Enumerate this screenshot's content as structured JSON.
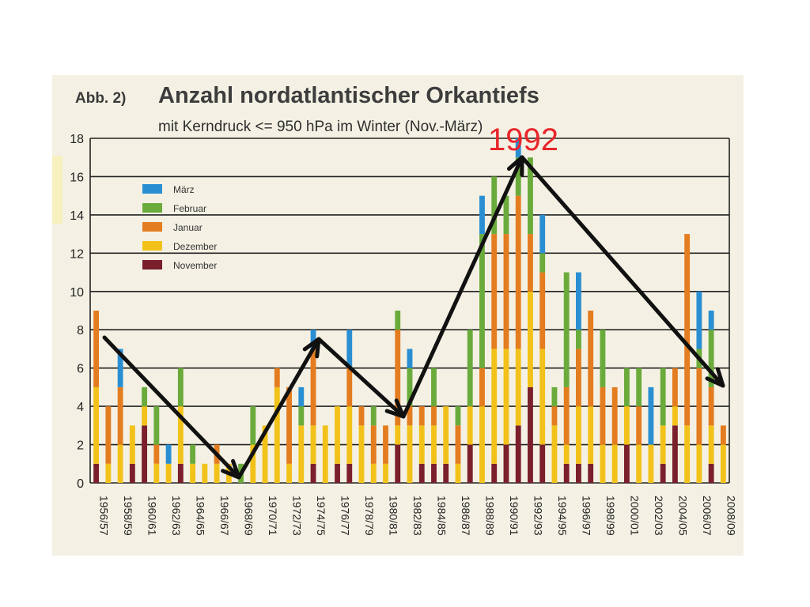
{
  "figure_label": "Abb. 2)",
  "annotation": "1992",
  "chart_data": {
    "type": "bar",
    "stacked": true,
    "title": "Anzahl nordatlantischer Orkantiefs",
    "subtitle": "mit Kerndruck <= 950 hPa im Winter (Nov.-März)",
    "ylim": [
      0,
      18
    ],
    "yticks": [
      0,
      2,
      4,
      6,
      8,
      10,
      12,
      14,
      16,
      18
    ],
    "grid": true,
    "legend_position": "upper-left",
    "categories": [
      "1956/57",
      "1957/58",
      "1958/59",
      "1959/60",
      "1960/61",
      "1961/62",
      "1962/63",
      "1963/64",
      "1964/65",
      "1965/66",
      "1966/67",
      "1967/68",
      "1968/69",
      "1969/70",
      "1970/71",
      "1971/72",
      "1972/73",
      "1973/74",
      "1974/75",
      "1975/76",
      "1976/77",
      "1977/78",
      "1978/79",
      "1979/80",
      "1980/81",
      "1981/82",
      "1982/83",
      "1983/84",
      "1984/85",
      "1985/86",
      "1986/87",
      "1987/88",
      "1988/89",
      "1989/90",
      "1990/91",
      "1991/92",
      "1992/93",
      "1993/94",
      "1994/95",
      "1995/96",
      "1996/97",
      "1997/98",
      "1998/99",
      "1999/00",
      "2000/01",
      "2001/02",
      "2002/03",
      "2003/04",
      "2004/05",
      "2005/06",
      "2006/07",
      "2007/08",
      "2008/09"
    ],
    "xtick_labels": [
      "1956/57",
      "1958/59",
      "1960/61",
      "1962/63",
      "1964/65",
      "1966/67",
      "1968/69",
      "1970/71",
      "1972/73",
      "1974/75",
      "1976/77",
      "1978/79",
      "1980/81",
      "1982/83",
      "1984/85",
      "1986/87",
      "1988/89",
      "1990/91",
      "1992/93",
      "1994/95",
      "1996/97",
      "1998/99",
      "2000/01",
      "2002/03",
      "2004/05",
      "2006/07",
      "2008/09"
    ],
    "series": [
      {
        "name": "November",
        "color": "#7a1f2b",
        "values": [
          1,
          0,
          0,
          1,
          3,
          0,
          0,
          1,
          0,
          0,
          0,
          0,
          0,
          0,
          0,
          0,
          0,
          0,
          1,
          0,
          1,
          1,
          0,
          0,
          0,
          2,
          0,
          1,
          1,
          1,
          0,
          2,
          0,
          1,
          2,
          3,
          5,
          2,
          0,
          1,
          1,
          1,
          0,
          0,
          2,
          0,
          0,
          1,
          3,
          0,
          0,
          1,
          0
        ]
      },
      {
        "name": "Dezember",
        "color": "#f2c21a",
        "values": [
          4,
          1,
          2,
          2,
          1,
          1,
          1,
          3,
          1,
          1,
          1,
          1,
          0,
          2,
          3,
          5,
          1,
          3,
          2,
          3,
          3,
          3,
          3,
          1,
          1,
          1,
          3,
          2,
          2,
          3,
          1,
          2,
          4,
          6,
          5,
          4,
          5,
          5,
          3,
          1,
          3,
          3,
          2,
          2,
          2,
          2,
          2,
          2,
          1,
          3,
          2,
          2,
          2
        ]
      },
      {
        "name": "Januar",
        "color": "#e47c20",
        "values": [
          4,
          3,
          3,
          0,
          0,
          1,
          0,
          0,
          0,
          0,
          1,
          0,
          0,
          0,
          0,
          1,
          4,
          0,
          4,
          0,
          0,
          2,
          1,
          2,
          2,
          5,
          1,
          1,
          1,
          0,
          2,
          0,
          2,
          6,
          6,
          8,
          3,
          4,
          1,
          3,
          3,
          5,
          3,
          3,
          0,
          2,
          0,
          0,
          2,
          10,
          4,
          2,
          1
        ]
      },
      {
        "name": "Februar",
        "color": "#6aab3c",
        "values": [
          0,
          0,
          0,
          0,
          1,
          2,
          0,
          2,
          1,
          0,
          0,
          0,
          1,
          2,
          0,
          0,
          0,
          1,
          0,
          0,
          0,
          0,
          0,
          1,
          0,
          1,
          2,
          0,
          2,
          0,
          1,
          4,
          7,
          3,
          2,
          2,
          4,
          1,
          1,
          6,
          1,
          0,
          3,
          0,
          2,
          2,
          0,
          3,
          0,
          0,
          1,
          3,
          0
        ]
      },
      {
        "name": "März",
        "color": "#2a8fd2",
        "values": [
          0,
          0,
          2,
          0,
          0,
          0,
          1,
          0,
          0,
          0,
          0,
          0,
          0,
          0,
          0,
          0,
          0,
          1,
          1,
          0,
          0,
          2,
          0,
          0,
          0,
          0,
          1,
          0,
          0,
          0,
          0,
          0,
          2,
          0,
          0,
          1,
          0,
          2,
          0,
          0,
          3,
          0,
          0,
          0,
          0,
          0,
          3,
          0,
          0,
          0,
          3,
          1,
          0
        ]
      }
    ]
  }
}
